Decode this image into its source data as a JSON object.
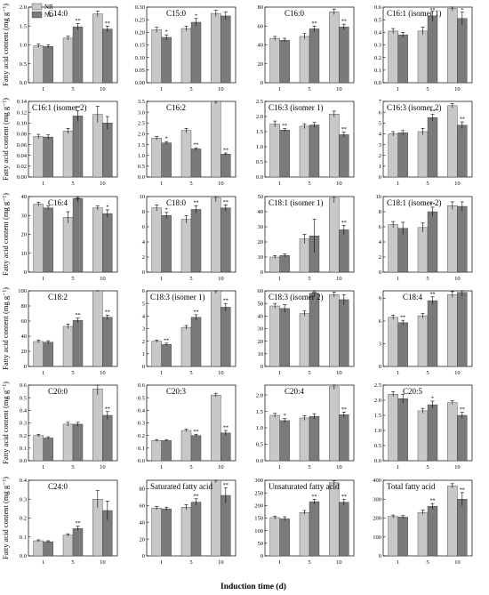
{
  "figure": {
    "y_axis_label": "Fatty acid content (mg g⁻¹)",
    "x_axis_label": "Induction time (d)",
    "legend": [
      {
        "name": "NR",
        "color": "#c8c8c8"
      },
      {
        "name": "ND",
        "color": "#7a7a7a"
      }
    ]
  },
  "chart_data": [
    {
      "type": "bar",
      "title": "C14:0",
      "categories": [
        "1",
        "5",
        "10"
      ],
      "ylim": [
        0,
        2.0
      ],
      "yticks": [
        "0.0",
        "0.5",
        "1.0",
        "1.5",
        "2.0"
      ],
      "series": [
        {
          "name": "NR",
          "values": [
            0.98,
            1.18,
            1.82
          ],
          "errors": [
            0.05,
            0.05,
            0.07
          ]
        },
        {
          "name": "ND",
          "values": [
            0.96,
            1.48,
            1.42
          ],
          "errors": [
            0.04,
            0.08,
            0.08
          ]
        }
      ],
      "marks": [
        "",
        "**",
        "**"
      ]
    },
    {
      "type": "bar",
      "title": "C15:0",
      "categories": [
        "1",
        "5",
        "10"
      ],
      "ylim": [
        0,
        0.3
      ],
      "yticks": [
        "0.00",
        "0.05",
        "0.10",
        "0.15",
        "0.20",
        "0.25",
        "0.30"
      ],
      "series": [
        {
          "name": "NR",
          "values": [
            0.21,
            0.215,
            0.275
          ],
          "errors": [
            0.01,
            0.01,
            0.012
          ]
        },
        {
          "name": "ND",
          "values": [
            0.18,
            0.24,
            0.265
          ],
          "errors": [
            0.01,
            0.015,
            0.015
          ]
        }
      ],
      "marks": [
        "*",
        "*",
        ""
      ]
    },
    {
      "type": "bar",
      "title": "C16:0",
      "categories": [
        "1",
        "5",
        "10"
      ],
      "ylim": [
        0,
        80
      ],
      "yticks": [
        "0",
        "20",
        "40",
        "60",
        "80"
      ],
      "series": [
        {
          "name": "NR",
          "values": [
            47,
            49,
            75
          ],
          "errors": [
            2,
            3,
            3
          ]
        },
        {
          "name": "ND",
          "values": [
            45,
            57,
            59
          ],
          "errors": [
            2,
            3,
            3
          ]
        }
      ],
      "marks": [
        "",
        "**",
        "**"
      ]
    },
    {
      "type": "bar",
      "title": "C16:1 (isomer 1)",
      "categories": [
        "1",
        "5",
        "10"
      ],
      "ylim": [
        0,
        0.6
      ],
      "yticks": [
        "0.0",
        "0.1",
        "0.2",
        "0.3",
        "0.4",
        "0.5",
        "0.6"
      ],
      "series": [
        {
          "name": "NR",
          "values": [
            0.41,
            0.41,
            0.59
          ],
          "errors": [
            0.02,
            0.03,
            0.02
          ]
        },
        {
          "name": "ND",
          "values": [
            0.38,
            0.53,
            0.51
          ],
          "errors": [
            0.02,
            0.04,
            0.05
          ]
        }
      ],
      "marks": [
        "",
        "**",
        "*"
      ]
    },
    {
      "type": "bar",
      "title": "C16:1 (isomer 2)",
      "categories": [
        "1",
        "5",
        "10"
      ],
      "ylim": [
        0,
        0.14
      ],
      "yticks": [
        "0.00",
        "0.02",
        "0.04",
        "0.06",
        "0.08",
        "0.10",
        "0.12",
        "0.14"
      ],
      "series": [
        {
          "name": "NR",
          "values": [
            0.075,
            0.085,
            0.116
          ],
          "errors": [
            0.004,
            0.005,
            0.015
          ]
        },
        {
          "name": "ND",
          "values": [
            0.074,
            0.113,
            0.1
          ],
          "errors": [
            0.004,
            0.01,
            0.012
          ]
        }
      ],
      "marks": [
        "",
        "**",
        ""
      ]
    },
    {
      "type": "bar",
      "title": "C16:2",
      "categories": [
        "1",
        "5",
        "10"
      ],
      "ylim": [
        0,
        3.5
      ],
      "yticks": [
        "0.0",
        "0.5",
        "1.0",
        "1.5",
        "2.0",
        "2.5",
        "3.0",
        "3.5"
      ],
      "series": [
        {
          "name": "NR",
          "values": [
            1.8,
            2.15,
            3.5
          ],
          "errors": [
            0.08,
            0.1,
            0.12
          ]
        },
        {
          "name": "ND",
          "values": [
            1.58,
            1.3,
            1.06
          ],
          "errors": [
            0.06,
            0.05,
            0.05
          ]
        }
      ],
      "marks": [
        "*",
        "**",
        "**"
      ]
    },
    {
      "type": "bar",
      "title": "C16:3 (isomer 1)",
      "categories": [
        "1",
        "5",
        "10"
      ],
      "ylim": [
        0,
        2.5
      ],
      "yticks": [
        "0.0",
        "0.5",
        "1.0",
        "1.5",
        "2.0",
        "2.5"
      ],
      "series": [
        {
          "name": "NR",
          "values": [
            1.75,
            1.68,
            2.08
          ],
          "errors": [
            0.1,
            0.08,
            0.1
          ]
        },
        {
          "name": "ND",
          "values": [
            1.55,
            1.72,
            1.4
          ],
          "errors": [
            0.05,
            0.08,
            0.08
          ]
        }
      ],
      "marks": [
        "**",
        "",
        "**"
      ]
    },
    {
      "type": "bar",
      "title": "C16:3 (isomer 2)",
      "categories": [
        "1",
        "5",
        "10"
      ],
      "ylim": [
        0,
        7
      ],
      "yticks": [
        "0",
        "1",
        "2",
        "3",
        "4",
        "5",
        "6",
        "7"
      ],
      "series": [
        {
          "name": "NR",
          "values": [
            4.0,
            4.2,
            6.6
          ],
          "errors": [
            0.2,
            0.3,
            0.2
          ]
        },
        {
          "name": "ND",
          "values": [
            4.1,
            5.5,
            4.8
          ],
          "errors": [
            0.2,
            0.3,
            0.3
          ]
        }
      ],
      "marks": [
        "",
        "**",
        "**"
      ]
    },
    {
      "type": "bar",
      "title": "C16:4",
      "categories": [
        "1",
        "5",
        "10"
      ],
      "ylim": [
        0,
        40
      ],
      "yticks": [
        "0",
        "10",
        "20",
        "30",
        "40"
      ],
      "series": [
        {
          "name": "NR",
          "values": [
            36,
            29,
            34
          ],
          "errors": [
            1,
            3,
            1
          ]
        },
        {
          "name": "ND",
          "values": [
            34,
            39,
            31
          ],
          "errors": [
            1,
            2,
            2
          ]
        }
      ],
      "marks": [
        "",
        "**",
        "*"
      ]
    },
    {
      "type": "bar",
      "title": "C18:0",
      "categories": [
        "1",
        "5",
        "10"
      ],
      "ylim": [
        0,
        10
      ],
      "yticks": [
        "0",
        "2",
        "4",
        "6",
        "8",
        "10"
      ],
      "series": [
        {
          "name": "NR",
          "values": [
            8.5,
            7.0,
            9.8
          ],
          "errors": [
            0.4,
            0.5,
            0.5
          ]
        },
        {
          "name": "ND",
          "values": [
            7.5,
            8.3,
            8.5
          ],
          "errors": [
            0.4,
            0.5,
            0.4
          ]
        }
      ],
      "marks": [
        "*",
        "**",
        "**"
      ]
    },
    {
      "type": "bar",
      "title": "C18:1 (isomer 1)",
      "categories": [
        "1",
        "5",
        "10"
      ],
      "ylim": [
        0,
        50
      ],
      "yticks": [
        "0",
        "10",
        "20",
        "30",
        "40",
        "50"
      ],
      "series": [
        {
          "name": "NR",
          "values": [
            10,
            22,
            49
          ],
          "errors": [
            1,
            3,
            3
          ]
        },
        {
          "name": "ND",
          "values": [
            11,
            24,
            28
          ],
          "errors": [
            1,
            11,
            3
          ]
        }
      ],
      "marks": [
        "",
        "",
        "**"
      ]
    },
    {
      "type": "bar",
      "title": "C18:1 (isomer 2)",
      "categories": [
        "1",
        "5",
        "10"
      ],
      "ylim": [
        0,
        10
      ],
      "yticks": [
        "0",
        "2",
        "4",
        "6",
        "8",
        "10"
      ],
      "series": [
        {
          "name": "NR",
          "values": [
            6.3,
            5.9,
            8.8
          ],
          "errors": [
            0.4,
            0.6,
            0.5
          ]
        },
        {
          "name": "ND",
          "values": [
            5.8,
            8.0,
            8.7
          ],
          "errors": [
            0.8,
            0.6,
            0.6
          ]
        }
      ],
      "marks": [
        "",
        "**",
        ""
      ]
    },
    {
      "type": "bar",
      "title": "C18:2",
      "categories": [
        "1",
        "5",
        "10"
      ],
      "ylim": [
        0,
        100
      ],
      "yticks": [
        "0",
        "20",
        "40",
        "60",
        "80",
        "100"
      ],
      "series": [
        {
          "name": "NR",
          "values": [
            33,
            53,
            104
          ],
          "errors": [
            2,
            3,
            3
          ]
        },
        {
          "name": "ND",
          "values": [
            32,
            61,
            65
          ],
          "errors": [
            2,
            3,
            3
          ]
        }
      ],
      "marks": [
        "",
        "**",
        "**"
      ]
    },
    {
      "type": "bar",
      "title": "C18:3 (isomer 1)",
      "categories": [
        "1",
        "5",
        "10"
      ],
      "ylim": [
        0,
        6
      ],
      "yticks": [
        "0",
        "1",
        "2",
        "3",
        "4",
        "5",
        "6"
      ],
      "series": [
        {
          "name": "NR",
          "values": [
            2.0,
            3.1,
            6.0
          ],
          "errors": [
            0.1,
            0.15,
            0.2
          ]
        },
        {
          "name": "ND",
          "values": [
            1.75,
            3.9,
            4.7
          ],
          "errors": [
            0.1,
            0.2,
            0.3
          ]
        }
      ],
      "marks": [
        "**",
        "**",
        "**"
      ]
    },
    {
      "type": "bar",
      "title": "C18:3 (isomer 2)",
      "categories": [
        "1",
        "5",
        "10"
      ],
      "ylim": [
        0,
        60
      ],
      "yticks": [
        "0",
        "10",
        "20",
        "30",
        "40",
        "50",
        "60"
      ],
      "series": [
        {
          "name": "NR",
          "values": [
            48,
            42,
            57
          ],
          "errors": [
            2,
            2,
            2
          ]
        },
        {
          "name": "ND",
          "values": [
            46,
            58,
            53
          ],
          "errors": [
            3,
            3,
            4
          ]
        }
      ],
      "marks": [
        "",
        "**",
        ""
      ]
    },
    {
      "type": "bar",
      "title": "C18:4",
      "categories": [
        "1",
        "5",
        "10"
      ],
      "ylim": [
        0,
        10
      ],
      "yticks": [
        "0",
        "3",
        "6",
        "9"
      ],
      "series": [
        {
          "name": "NR",
          "values": [
            6.5,
            6.7,
            9.5
          ],
          "errors": [
            0.3,
            0.3,
            0.4
          ]
        },
        {
          "name": "ND",
          "values": [
            5.8,
            8.7,
            9.8
          ],
          "errors": [
            0.3,
            0.5,
            0.5
          ]
        }
      ],
      "marks": [
        "**",
        "**",
        ""
      ]
    },
    {
      "type": "bar",
      "title": "C20:0",
      "categories": [
        "1",
        "5",
        "10"
      ],
      "ylim": [
        0,
        0.6
      ],
      "yticks": [
        "0.0",
        "0.1",
        "0.2",
        "0.3",
        "0.4",
        "0.5",
        "0.6"
      ],
      "series": [
        {
          "name": "NR",
          "values": [
            0.2,
            0.29,
            0.57
          ],
          "errors": [
            0.01,
            0.015,
            0.05
          ]
        },
        {
          "name": "ND",
          "values": [
            0.18,
            0.29,
            0.36
          ],
          "errors": [
            0.01,
            0.015,
            0.03
          ]
        }
      ],
      "marks": [
        "",
        "",
        "**"
      ]
    },
    {
      "type": "bar",
      "title": "C20:3",
      "categories": [
        "1",
        "5",
        "10"
      ],
      "ylim": [
        0,
        0.6
      ],
      "yticks": [
        "0.0",
        "0.1",
        "0.2",
        "0.3",
        "0.4",
        "0.5",
        "0.6"
      ],
      "series": [
        {
          "name": "NR",
          "values": [
            0.16,
            0.24,
            0.52
          ],
          "errors": [
            0.008,
            0.01,
            0.015
          ]
        },
        {
          "name": "ND",
          "values": [
            0.16,
            0.2,
            0.22
          ],
          "errors": [
            0.008,
            0.01,
            0.02
          ]
        }
      ],
      "marks": [
        "",
        "**",
        "**"
      ]
    },
    {
      "type": "bar",
      "title": "C20:4",
      "categories": [
        "1",
        "5",
        "10"
      ],
      "ylim": [
        0,
        2.3
      ],
      "yticks": [
        "0.0",
        "0.5",
        "1.0",
        "1.5",
        "2.0"
      ],
      "series": [
        {
          "name": "NR",
          "values": [
            1.38,
            1.3,
            2.25
          ],
          "errors": [
            0.06,
            0.07,
            0.08
          ]
        },
        {
          "name": "ND",
          "values": [
            1.22,
            1.35,
            1.4
          ],
          "errors": [
            0.06,
            0.08,
            0.08
          ]
        }
      ],
      "marks": [
        "*",
        "",
        "**"
      ]
    },
    {
      "type": "bar",
      "title": "C20:5",
      "categories": [
        "1",
        "5",
        "10"
      ],
      "ylim": [
        0,
        2.5
      ],
      "yticks": [
        "0.0",
        "0.5",
        "1.0",
        "1.5",
        "2.0",
        "2.5"
      ],
      "series": [
        {
          "name": "NR",
          "values": [
            2.2,
            1.65,
            1.92
          ],
          "errors": [
            0.08,
            0.08,
            0.06
          ]
        },
        {
          "name": "ND",
          "values": [
            2.05,
            1.85,
            1.5
          ],
          "errors": [
            0.15,
            0.12,
            0.1
          ]
        }
      ],
      "marks": [
        "",
        "*",
        "**"
      ]
    },
    {
      "type": "bar",
      "title": "C24:0",
      "categories": [
        "1",
        "5",
        "10"
      ],
      "ylim": [
        0,
        0.4
      ],
      "yticks": [
        "0.0",
        "0.1",
        "0.2",
        "0.3",
        "0.4"
      ],
      "series": [
        {
          "name": "NR",
          "values": [
            0.08,
            0.11,
            0.3
          ],
          "errors": [
            0.005,
            0.007,
            0.045
          ]
        },
        {
          "name": "ND",
          "values": [
            0.075,
            0.145,
            0.24
          ],
          "errors": [
            0.005,
            0.012,
            0.05
          ]
        }
      ],
      "marks": [
        "",
        "**",
        ""
      ]
    },
    {
      "type": "bar",
      "title": "Saturated fatty acid",
      "categories": [
        "1",
        "5",
        "10"
      ],
      "ylim": [
        0,
        90
      ],
      "yticks": [
        "0",
        "20",
        "40",
        "60",
        "80"
      ],
      "series": [
        {
          "name": "NR",
          "values": [
            57,
            58,
            90
          ],
          "errors": [
            2,
            3,
            3
          ]
        },
        {
          "name": "ND",
          "values": [
            56,
            64,
            72
          ],
          "errors": [
            2,
            4,
            9
          ]
        }
      ],
      "marks": [
        "",
        "**",
        "**"
      ]
    },
    {
      "type": "bar",
      "title": "Unsaturated fatty acid",
      "categories": [
        "1",
        "5",
        "10"
      ],
      "ylim": [
        0,
        300
      ],
      "yticks": [
        "0",
        "50",
        "100",
        "150",
        "200",
        "250",
        "300"
      ],
      "series": [
        {
          "name": "NR",
          "values": [
            152,
            172,
            290
          ],
          "errors": [
            6,
            8,
            8
          ]
        },
        {
          "name": "ND",
          "values": [
            147,
            215,
            213
          ],
          "errors": [
            8,
            10,
            12
          ]
        }
      ],
      "marks": [
        "",
        "**",
        "**"
      ]
    },
    {
      "type": "bar",
      "title": "Total fatty acid",
      "categories": [
        "1",
        "5",
        "10"
      ],
      "ylim": [
        0,
        400
      ],
      "yticks": [
        "0",
        "100",
        "200",
        "300",
        "400"
      ],
      "series": [
        {
          "name": "NR",
          "values": [
            208,
            230,
            370
          ],
          "errors": [
            8,
            12,
            12
          ]
        },
        {
          "name": "ND",
          "values": [
            205,
            262,
            300
          ],
          "errors": [
            8,
            15,
            35
          ]
        }
      ],
      "marks": [
        "",
        "**",
        "**"
      ]
    }
  ]
}
